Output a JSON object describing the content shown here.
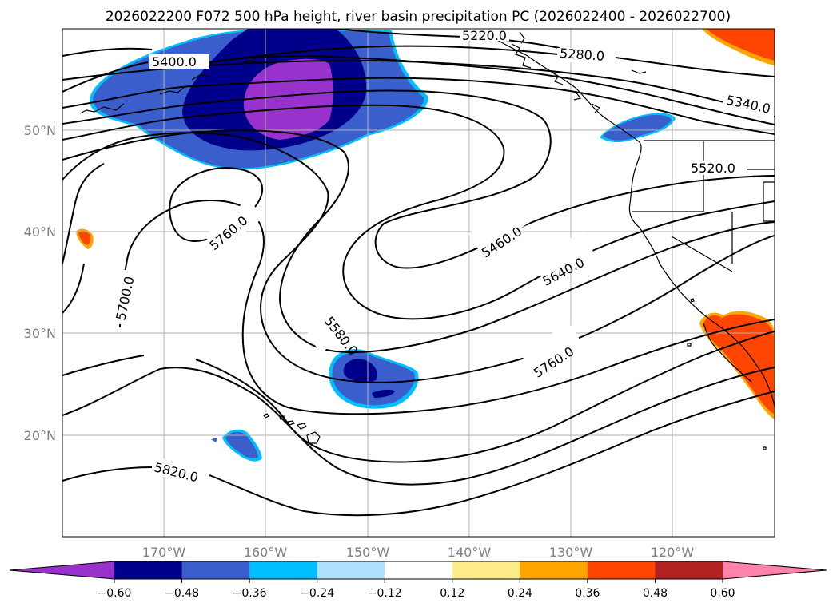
{
  "title": "2026022200 F072 500 hPa height, river basin precipitation PC (2026022400 - 2026022700)",
  "lat_labels": [
    "50°N",
    "40°N",
    "30°N",
    "20°N"
  ],
  "lon_labels": [
    "170°W",
    "160°W",
    "150°W",
    "140°W",
    "130°W",
    "120°W"
  ],
  "contour_labels": [
    "5220.0",
    "5280.0",
    "5340.0",
    "5400.0",
    "5520.0",
    "5460.0",
    "5640.0",
    "5760.0",
    "5700.0",
    "5580.0",
    "5760.0",
    "5820.0"
  ],
  "colorbar": {
    "ticks": [
      "−0.60",
      "−0.48",
      "−0.36",
      "−0.24",
      "−0.12",
      "0.12",
      "0.24",
      "0.36",
      "0.48",
      "0.60"
    ],
    "colors": [
      "#9932cc",
      "#00008b",
      "#3a5fcd",
      "#00bfff",
      "#b0e2ff",
      "#ffffff",
      "#ffec8b",
      "#ffa500",
      "#ff4500",
      "#b22222",
      "#ff82ab"
    ]
  },
  "colors": {
    "neg_strong": "#9932cc",
    "neg_dark": "#00008b",
    "neg_mid": "#3a5fcd",
    "neg_light": "#00bfff",
    "pos_orange": "#ff4500",
    "pos_yellow": "#ffa500"
  }
}
